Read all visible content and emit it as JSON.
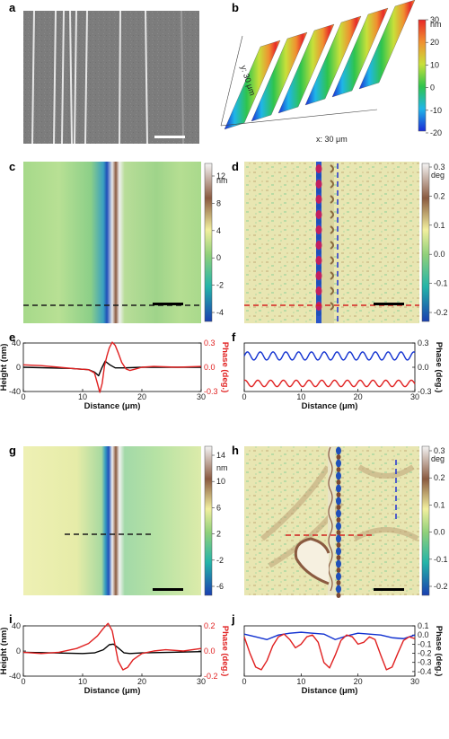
{
  "panels": {
    "a": {
      "label": "a"
    },
    "b": {
      "label": "b",
      "x_label": "x: 30 μm",
      "y_label": "y: 30 μm",
      "cbar_unit": "nm",
      "cbar_ticks": [
        "30",
        "20",
        "10",
        "0",
        "-10",
        "-20"
      ]
    },
    "c": {
      "label": "c",
      "cbar_unit": "nm",
      "cbar_ticks": [
        "12",
        "8",
        "4",
        "0",
        "-2",
        "-4"
      ]
    },
    "d": {
      "label": "d",
      "cbar_unit": "deg",
      "cbar_ticks": [
        "0.3",
        "0.2",
        "0.1",
        "0.0",
        "-0.1",
        "-0.2"
      ]
    },
    "e": {
      "label": "e"
    },
    "f": {
      "label": "f"
    },
    "g": {
      "label": "g",
      "cbar_unit": "nm",
      "cbar_ticks": [
        "14",
        "10",
        "6",
        "2",
        "-2",
        "-6"
      ]
    },
    "h": {
      "label": "h",
      "cbar_unit": "deg",
      "cbar_ticks": [
        "0.3",
        "0.2",
        "0.1",
        "0.0",
        "-0.1",
        "-0.2"
      ]
    },
    "i": {
      "label": "i"
    },
    "j": {
      "label": "j"
    }
  },
  "chart_data": [
    {
      "panel": "e",
      "type": "line",
      "xlabel": "Distance (μm)",
      "ylabel": "Height (nm)",
      "ylabel_right": "Phase (deg.)",
      "xlim": [
        0,
        30
      ],
      "ylim": [
        -40,
        40
      ],
      "ylim_right": [
        -0.3,
        0.3
      ],
      "xticks": [
        "0",
        "10",
        "20",
        "30"
      ],
      "yticks": [
        "40",
        "0",
        "-40"
      ],
      "yticks_right": [
        "0.3",
        "0.0",
        "-0.3"
      ],
      "colors": {
        "height": "#000000",
        "phase": "#e02020"
      },
      "series": [
        {
          "axis": "left",
          "color": "#000000",
          "x": [
            0,
            4,
            8,
            11,
            12,
            12.7,
            13.2,
            13.8,
            14.6,
            15.5,
            17,
            20,
            25,
            30
          ],
          "y": [
            0,
            -1,
            -2,
            -4,
            -8,
            -14,
            -2,
            10,
            4,
            -1,
            -1,
            0,
            0,
            0
          ]
        },
        {
          "axis": "right",
          "color": "#e02020",
          "x": [
            0,
            3,
            6,
            9,
            11,
            12,
            12.5,
            12.9,
            13.3,
            13.7,
            14.1,
            14.5,
            15,
            15.5,
            16,
            16.6,
            17.3,
            18,
            19,
            20,
            22,
            26,
            30
          ],
          "y": [
            0.03,
            0.02,
            0.0,
            -0.02,
            -0.03,
            -0.07,
            -0.2,
            -0.31,
            -0.2,
            0.02,
            0.14,
            0.24,
            0.31,
            0.27,
            0.18,
            0.06,
            -0.02,
            -0.04,
            -0.02,
            0.0,
            0.01,
            0.0,
            0.01
          ]
        }
      ]
    },
    {
      "panel": "f",
      "type": "line",
      "xlabel": "Distance (μm)",
      "ylabel_right": "Phase (deg.)",
      "xlim": [
        0,
        30
      ],
      "ylim_right": [
        -0.3,
        0.3
      ],
      "xticks": [
        "0",
        "10",
        "20",
        "30"
      ],
      "yticks_right": [
        "0.3",
        "0.0",
        "-0.3"
      ],
      "colors": {
        "blue": "#1030d0",
        "red": "#e02020"
      },
      "series": [
        {
          "axis": "right",
          "color": "#1030d0",
          "kind": "wave",
          "offset": 0.14,
          "amplitude": 0.05,
          "period": 2.25,
          "phase": 0.0
        },
        {
          "axis": "right",
          "color": "#e02020",
          "kind": "wave",
          "offset": -0.2,
          "amplitude": 0.04,
          "period": 2.25,
          "phase": 1.2
        }
      ]
    },
    {
      "panel": "i",
      "type": "line",
      "xlabel": "Distance (μm)",
      "ylabel": "Height (nm)",
      "ylabel_right": "Phase (deg.)",
      "xlim": [
        0,
        30
      ],
      "ylim": [
        -40,
        40
      ],
      "ylim_right": [
        -0.2,
        0.2
      ],
      "xticks": [
        "0",
        "10",
        "20",
        "30"
      ],
      "yticks": [
        "40",
        "0",
        "-40"
      ],
      "yticks_right": [
        "0.2",
        "0.0",
        "-0.2"
      ],
      "colors": {
        "height": "#000000",
        "phase": "#e02020"
      },
      "series": [
        {
          "axis": "left",
          "color": "#000000",
          "x": [
            0,
            5,
            10,
            12,
            13.5,
            14.5,
            15.2,
            16,
            17,
            18,
            20,
            25,
            30
          ],
          "y": [
            -2,
            -3,
            -4,
            -3,
            2,
            10,
            11,
            5,
            -3,
            -4,
            -3,
            -2,
            -1
          ]
        },
        {
          "axis": "right",
          "color": "#e02020",
          "x": [
            0,
            3,
            6,
            9,
            11,
            12.5,
            13.5,
            14.3,
            15,
            15.5,
            16,
            16.8,
            17.6,
            18.5,
            20,
            22,
            24,
            27,
            30
          ],
          "y": [
            -0.01,
            -0.02,
            -0.01,
            0.02,
            0.06,
            0.12,
            0.18,
            0.22,
            0.16,
            0.04,
            -0.08,
            -0.15,
            -0.13,
            -0.07,
            -0.02,
            0.0,
            0.01,
            0.0,
            0.02
          ]
        }
      ]
    },
    {
      "panel": "j",
      "type": "line",
      "xlabel": "Distance (μm)",
      "ylabel_right": "Phase (deg.)",
      "xlim": [
        0,
        30
      ],
      "ylim_right": [
        -0.45,
        0.1
      ],
      "xticks": [
        "0",
        "10",
        "20",
        "30"
      ],
      "yticks_right": [
        "0.1",
        "0.0",
        "-0.1",
        "-0.2",
        "-0.3",
        "-0.4"
      ],
      "colors": {
        "blue": "#1030d0",
        "red": "#e02020"
      },
      "series": [
        {
          "axis": "right",
          "color": "#1030d0",
          "x": [
            0,
            2,
            4,
            6,
            8,
            10,
            12,
            14,
            16,
            18,
            20,
            22,
            24,
            26,
            28,
            30
          ],
          "y": [
            0.01,
            -0.02,
            -0.05,
            0.0,
            0.02,
            0.03,
            0.02,
            0.01,
            -0.05,
            -0.01,
            0.02,
            0.01,
            0.0,
            -0.03,
            -0.04,
            0.0
          ]
        },
        {
          "axis": "right",
          "color": "#e02020",
          "x": [
            0,
            1,
            2,
            3,
            4,
            5,
            6,
            7,
            8,
            9,
            10,
            11,
            12,
            13,
            14,
            15,
            16,
            17,
            18,
            19,
            20,
            21,
            22,
            23,
            24,
            25,
            26,
            27,
            28,
            29,
            30
          ],
          "y": [
            -0.02,
            -0.2,
            -0.35,
            -0.38,
            -0.28,
            -0.12,
            -0.02,
            0.01,
            -0.05,
            -0.14,
            -0.1,
            -0.02,
            0.0,
            -0.08,
            -0.3,
            -0.36,
            -0.22,
            -0.06,
            0.0,
            -0.02,
            -0.1,
            -0.08,
            -0.02,
            -0.05,
            -0.22,
            -0.38,
            -0.35,
            -0.2,
            -0.06,
            -0.02,
            -0.04
          ]
        }
      ]
    }
  ]
}
